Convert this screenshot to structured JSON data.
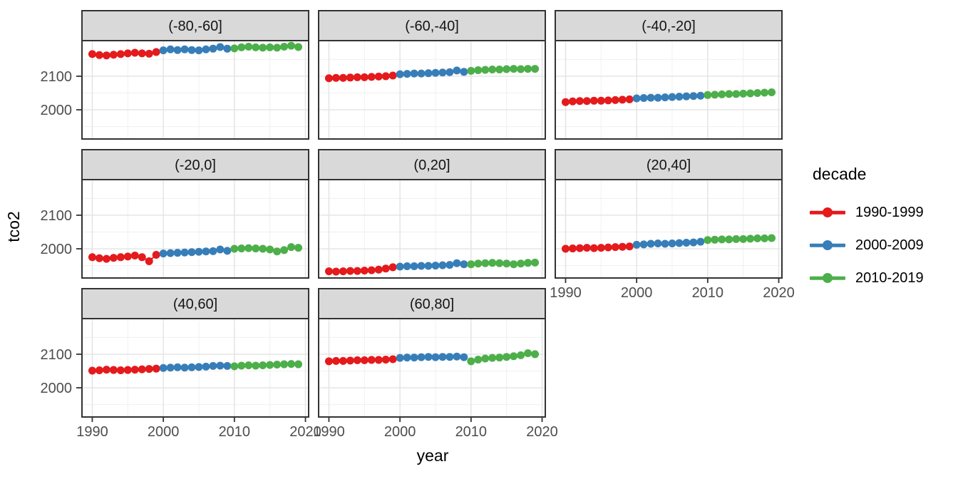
{
  "chart_data": {
    "type": "scatter",
    "title": "",
    "xlabel": "year",
    "ylabel": "tco2",
    "grid": true,
    "xlim": [
      1988.55,
      2020.45
    ],
    "ylim": [
      1913,
      2206
    ],
    "x_major_ticks": [
      1990,
      2000,
      2010,
      2020
    ],
    "x_minor_ticks": [
      1995,
      2005,
      2015
    ],
    "y_major_ticks": [
      2000,
      2100
    ],
    "y_minor_ticks": [
      1950,
      2050,
      2150
    ],
    "legend": {
      "title": "decade",
      "position": "right"
    },
    "series_meta": [
      {
        "name": "1990-1999",
        "color": "#E41A1C",
        "start_year": 1990
      },
      {
        "name": "2000-2009",
        "color": "#377EB8",
        "start_year": 2000
      },
      {
        "name": "2010-2019",
        "color": "#4DAF4A",
        "start_year": 2010
      }
    ],
    "facets": [
      {
        "label": "(-80,-60]",
        "series": [
          {
            "name": "1990-1999",
            "values": [
              2166,
              2163,
              2162,
              2164,
              2166,
              2168,
              2170,
              2168,
              2167,
              2172
            ]
          },
          {
            "name": "2000-2009",
            "values": [
              2177,
              2180,
              2178,
              2180,
              2178,
              2177,
              2180,
              2182,
              2187,
              2182
            ]
          },
          {
            "name": "2010-2019",
            "values": [
              2183,
              2186,
              2188,
              2186,
              2185,
              2186,
              2185,
              2188,
              2191,
              2187
            ]
          }
        ]
      },
      {
        "label": "(-60,-40]",
        "series": [
          {
            "name": "1990-1999",
            "values": [
              2094,
              2095,
              2095,
              2096,
              2097,
              2097,
              2098,
              2099,
              2100,
              2102
            ]
          },
          {
            "name": "2000-2009",
            "values": [
              2106,
              2107,
              2108,
              2108,
              2109,
              2110,
              2111,
              2112,
              2117,
              2113
            ]
          },
          {
            "name": "2010-2019",
            "values": [
              2116,
              2118,
              2119,
              2120,
              2120,
              2121,
              2122,
              2121,
              2122,
              2122
            ]
          }
        ]
      },
      {
        "label": "(-40,-20]",
        "series": [
          {
            "name": "1990-1999",
            "values": [
              2023,
              2025,
              2026,
              2026,
              2027,
              2027,
              2028,
              2029,
              2030,
              2031
            ]
          },
          {
            "name": "2000-2009",
            "values": [
              2034,
              2035,
              2036,
              2036,
              2037,
              2038,
              2039,
              2040,
              2041,
              2042
            ]
          },
          {
            "name": "2010-2019",
            "values": [
              2044,
              2045,
              2046,
              2047,
              2047,
              2048,
              2049,
              2050,
              2051,
              2052
            ]
          }
        ]
      },
      {
        "label": "(-20,0]",
        "series": [
          {
            "name": "1990-1999",
            "values": [
              1975,
              1972,
              1970,
              1973,
              1975,
              1977,
              1980,
              1975,
              1963,
              1982
            ]
          },
          {
            "name": "2000-2009",
            "values": [
              1986,
              1987,
              1988,
              1989,
              1990,
              1991,
              1992,
              1993,
              1998,
              1994
            ]
          },
          {
            "name": "2010-2019",
            "values": [
              2000,
              2001,
              2002,
              2001,
              2000,
              1998,
              1992,
              1996,
              2005,
              2003
            ]
          }
        ]
      },
      {
        "label": "(0,20]",
        "series": [
          {
            "name": "1990-1999",
            "values": [
              1933,
              1932,
              1933,
              1934,
              1934,
              1935,
              1936,
              1938,
              1941,
              1945
            ]
          },
          {
            "name": "2000-2009",
            "values": [
              1947,
              1948,
              1948,
              1949,
              1949,
              1950,
              1951,
              1952,
              1957,
              1954
            ]
          },
          {
            "name": "2010-2019",
            "values": [
              1954,
              1956,
              1957,
              1958,
              1957,
              1956,
              1954,
              1956,
              1958,
              1959
            ]
          }
        ]
      },
      {
        "label": "(20,40]",
        "series": [
          {
            "name": "1990-1999",
            "values": [
              2000,
              2001,
              2002,
              2003,
              2002,
              2003,
              2004,
              2005,
              2006,
              2007
            ]
          },
          {
            "name": "2000-2009",
            "values": [
              2012,
              2013,
              2015,
              2016,
              2015,
              2016,
              2017,
              2018,
              2019,
              2021
            ]
          },
          {
            "name": "2010-2019",
            "values": [
              2026,
              2027,
              2028,
              2028,
              2029,
              2029,
              2030,
              2031,
              2031,
              2032
            ]
          }
        ]
      },
      {
        "label": "(40,60]",
        "series": [
          {
            "name": "1990-1999",
            "values": [
              2051,
              2052,
              2054,
              2053,
              2052,
              2053,
              2054,
              2055,
              2056,
              2057
            ]
          },
          {
            "name": "2000-2009",
            "values": [
              2059,
              2060,
              2061,
              2060,
              2061,
              2062,
              2063,
              2065,
              2066,
              2065
            ]
          },
          {
            "name": "2010-2019",
            "values": [
              2064,
              2066,
              2067,
              2066,
              2067,
              2068,
              2069,
              2070,
              2071,
              2070
            ]
          }
        ]
      },
      {
        "label": "(60,80]",
        "series": [
          {
            "name": "1990-1999",
            "values": [
              2079,
              2080,
              2080,
              2081,
              2082,
              2082,
              2083,
              2083,
              2084,
              2085
            ]
          },
          {
            "name": "2000-2009",
            "values": [
              2089,
              2090,
              2090,
              2091,
              2092,
              2091,
              2092,
              2092,
              2093,
              2091
            ]
          },
          {
            "name": "2010-2019",
            "values": [
              2079,
              2084,
              2087,
              2089,
              2090,
              2092,
              2094,
              2097,
              2103,
              2100
            ]
          }
        ]
      }
    ]
  },
  "style": {
    "strip_fill": "#D9D9D9",
    "panel_border": "#333333",
    "grid_major": "#E3E3E3",
    "grid_minor": "#F0F0F0",
    "tick_color": "#333333",
    "tick_label_color": "#4D4D4D",
    "strip_text_color": "#141414"
  }
}
